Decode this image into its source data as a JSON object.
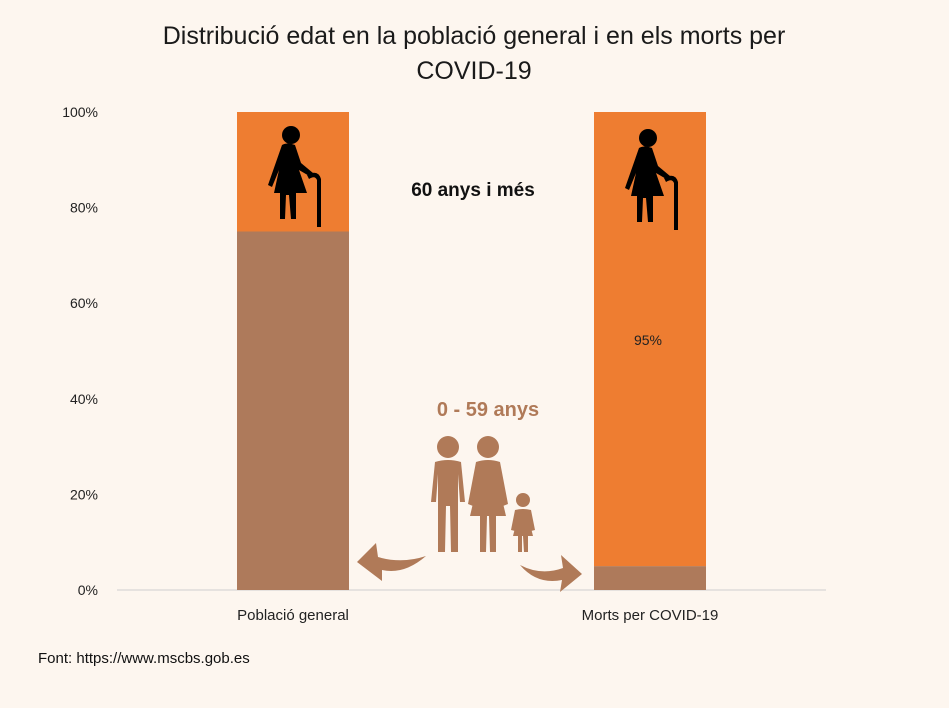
{
  "chart_data": {
    "type": "bar",
    "stacked": true,
    "title_lines": [
      "Distribució edat en la població general i en els morts per",
      "COVID-19"
    ],
    "categories": [
      "Població general",
      "Morts per COVID-19"
    ],
    "series": [
      {
        "values": [
          75,
          5
        ],
        "color": "#ae7a5b"
      },
      {
        "values": [
          25,
          95
        ],
        "color": "#ee7d31"
      }
    ],
    "ylim": [
      0,
      100
    ],
    "yticks": [
      "0%",
      "20%",
      "40%",
      "60%",
      "80%",
      "100%"
    ],
    "data_labels": [
      "95%"
    ],
    "annotations": [
      "60 anys i més",
      "0 - 59 anys"
    ],
    "legend": "none",
    "grid": false
  },
  "icons": {
    "elderly": "elderly-person-icon",
    "family": "family-icon",
    "arrows": "curved-arrow-icon"
  },
  "source": "Font: https://www.mscbs.gob.es"
}
